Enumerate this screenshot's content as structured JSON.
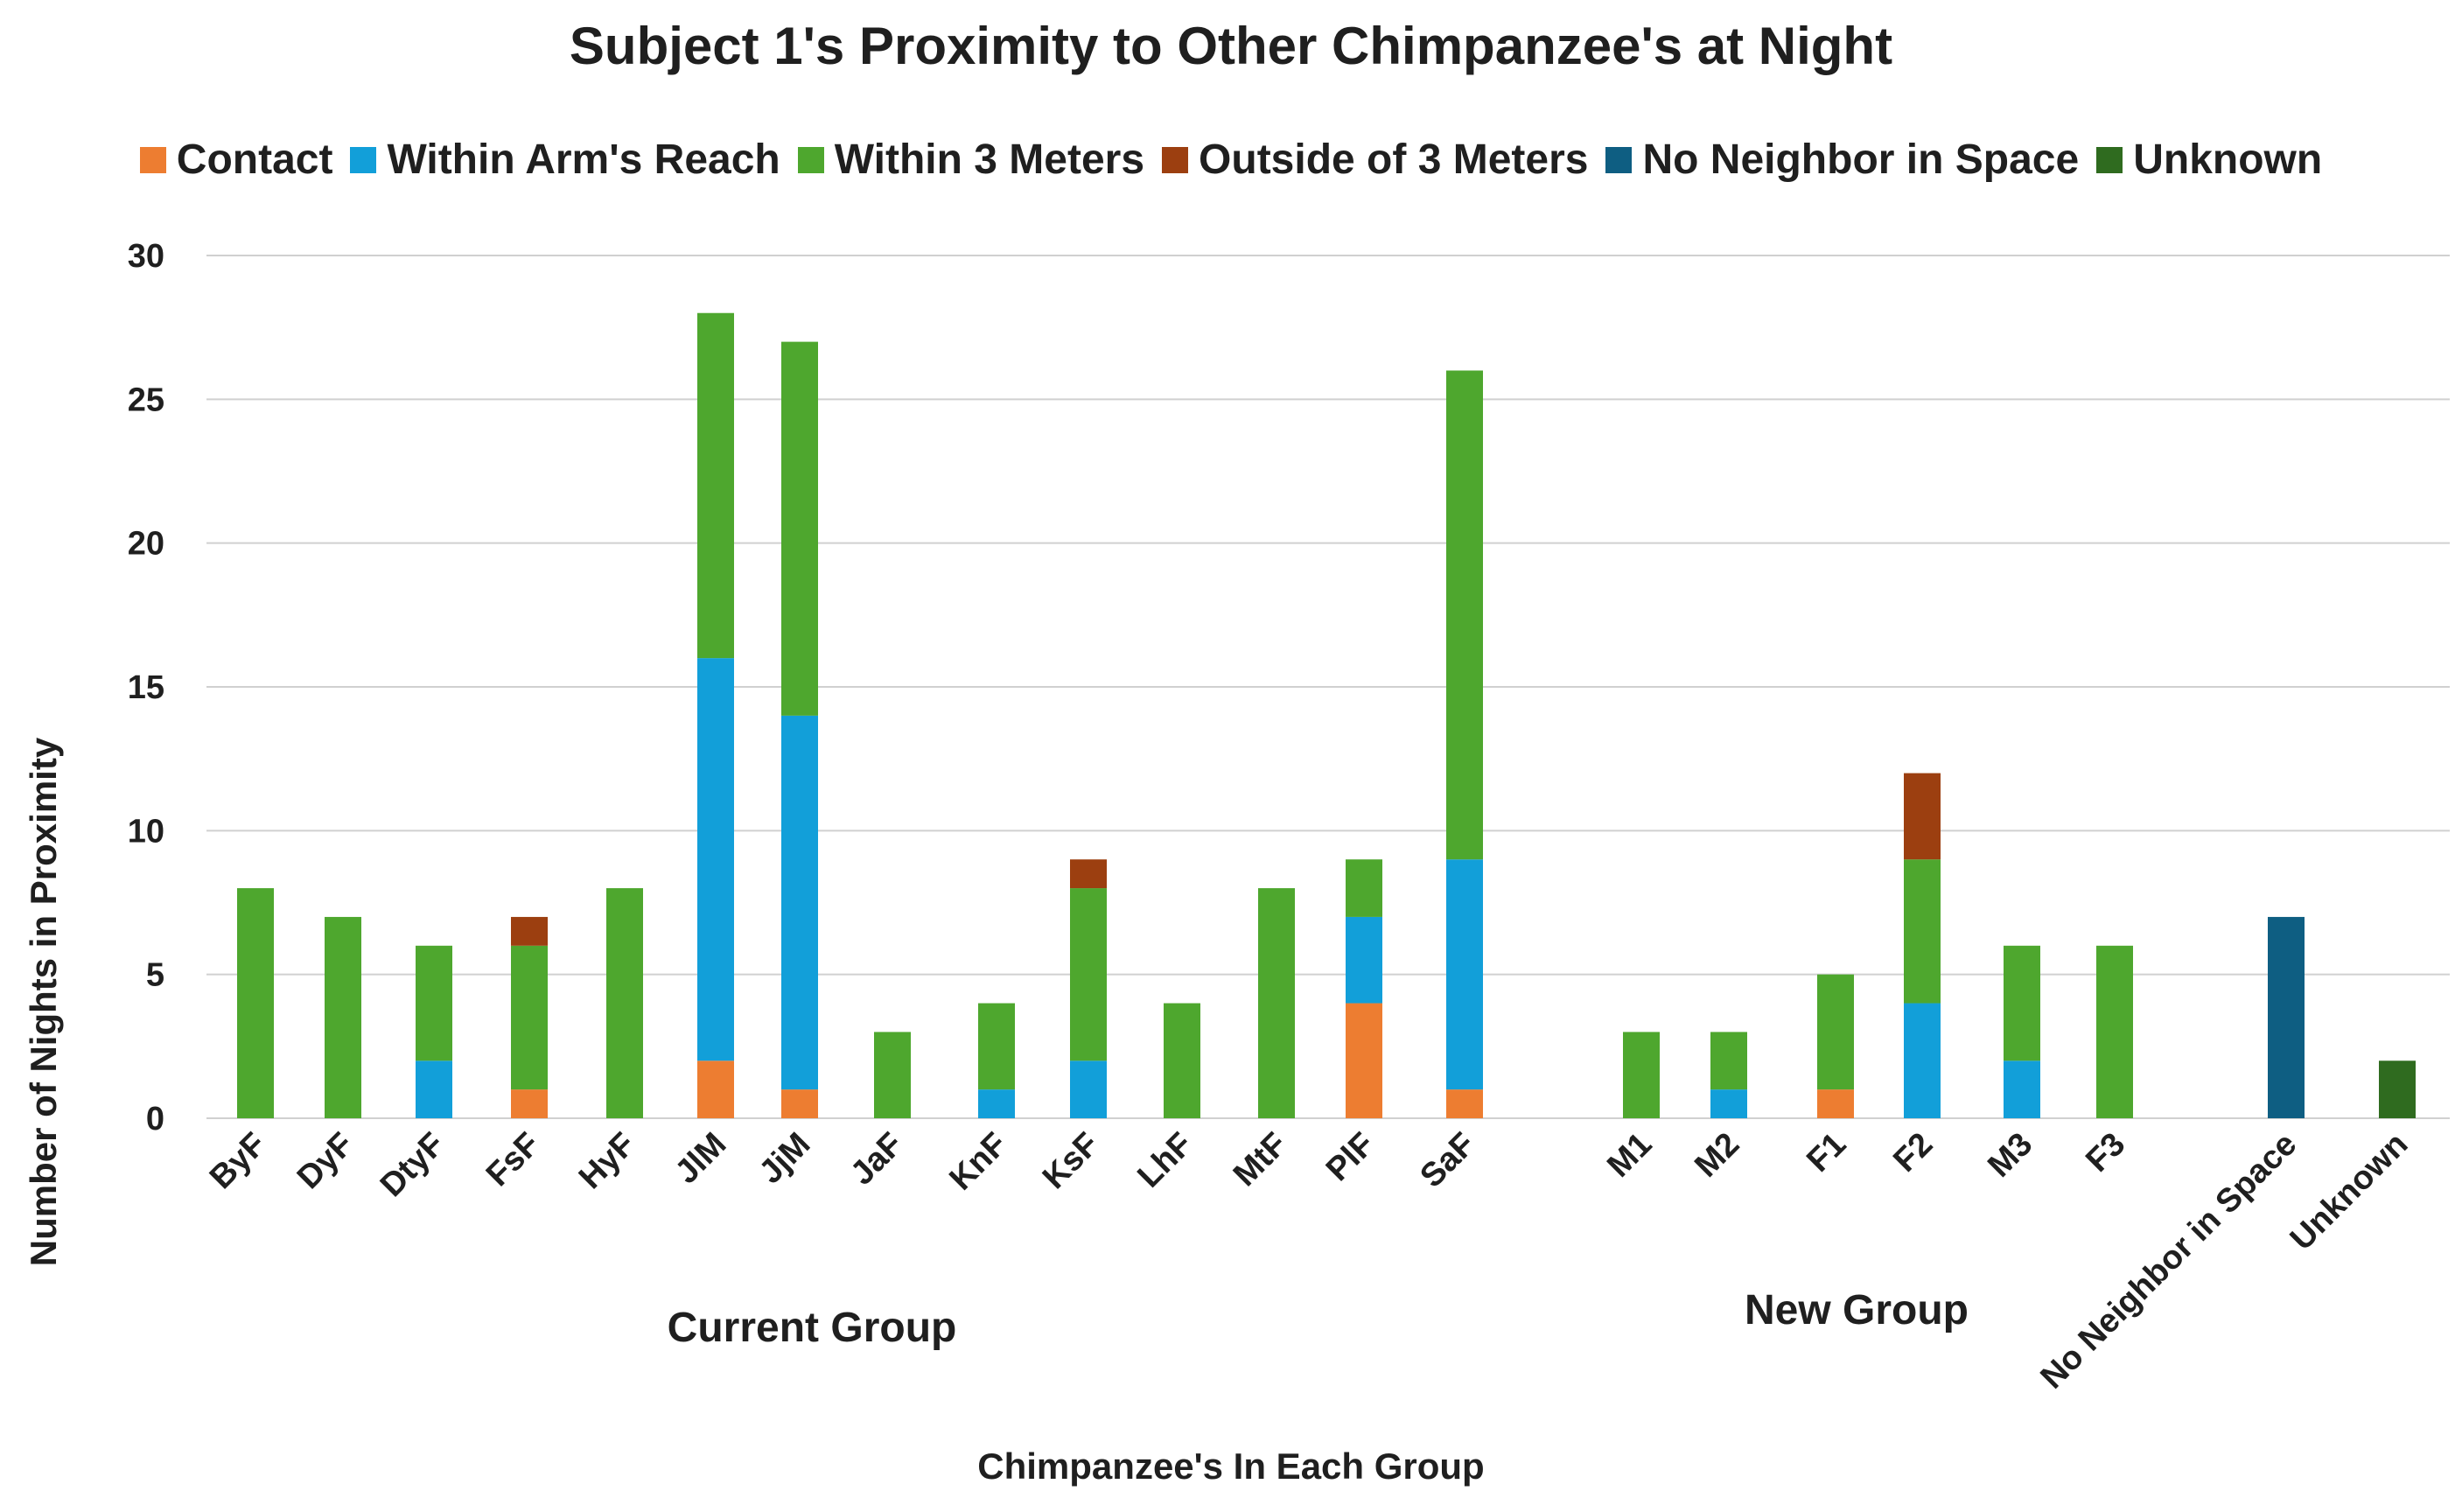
{
  "chart_data": {
    "type": "bar",
    "stacked": true,
    "title": "Subject 1's Proximity to Other Chimpanzee's at Night",
    "xlabel": "Chimpanzee's In Each Group",
    "ylabel": "Number of Nights in Proximity",
    "ylim": [
      0,
      30
    ],
    "yticks": [
      0,
      5,
      10,
      15,
      20,
      25,
      30
    ],
    "grid": true,
    "legend_position": "top",
    "categories": [
      "ByF",
      "DyF",
      "DtyF",
      "FsF",
      "HyF",
      "JlM",
      "JjM",
      "JaF",
      "KnF",
      "KsF",
      "LhF",
      "MtF",
      "PlF",
      "SaF",
      "M1",
      "M2",
      "F1",
      "F2",
      "M3",
      "F3",
      "No Neighbor in Space",
      "Unknown"
    ],
    "groups": [
      {
        "label": "Current Group",
        "from": 0,
        "to": 13
      },
      {
        "label": "New Group",
        "from": 14,
        "to": 19
      }
    ],
    "series": [
      {
        "name": "Contact",
        "color": "#ED7D31",
        "values": [
          0,
          0,
          0,
          1,
          0,
          2,
          1,
          0,
          0,
          0,
          0,
          0,
          4,
          1,
          0,
          0,
          1,
          0,
          0,
          0,
          0,
          0
        ]
      },
      {
        "name": "Within Arm's Reach",
        "color": "#129FD9",
        "values": [
          0,
          0,
          2,
          0,
          0,
          14,
          13,
          0,
          1,
          2,
          0,
          0,
          3,
          8,
          0,
          1,
          0,
          4,
          2,
          0,
          0,
          0
        ]
      },
      {
        "name": "Within 3 Meters",
        "color": "#4EA72E",
        "values": [
          8,
          7,
          4,
          5,
          8,
          12,
          13,
          3,
          3,
          6,
          4,
          8,
          2,
          17,
          3,
          2,
          4,
          5,
          4,
          6,
          0,
          0
        ]
      },
      {
        "name": "Outside of 3 Meters",
        "color": "#9C3F10",
        "values": [
          0,
          0,
          0,
          1,
          0,
          0,
          0,
          0,
          0,
          1,
          0,
          0,
          0,
          0,
          0,
          0,
          0,
          3,
          0,
          0,
          0,
          0
        ]
      },
      {
        "name": "No Neighbor in Space",
        "color": "#0E5E82",
        "values": [
          0,
          0,
          0,
          0,
          0,
          0,
          0,
          0,
          0,
          0,
          0,
          0,
          0,
          0,
          0,
          0,
          0,
          0,
          0,
          0,
          7,
          0
        ]
      },
      {
        "name": "Unknown",
        "color": "#2F6B1F",
        "values": [
          0,
          0,
          0,
          0,
          0,
          0,
          0,
          0,
          0,
          0,
          0,
          0,
          0,
          0,
          0,
          0,
          0,
          0,
          0,
          0,
          0,
          2
        ]
      }
    ]
  }
}
